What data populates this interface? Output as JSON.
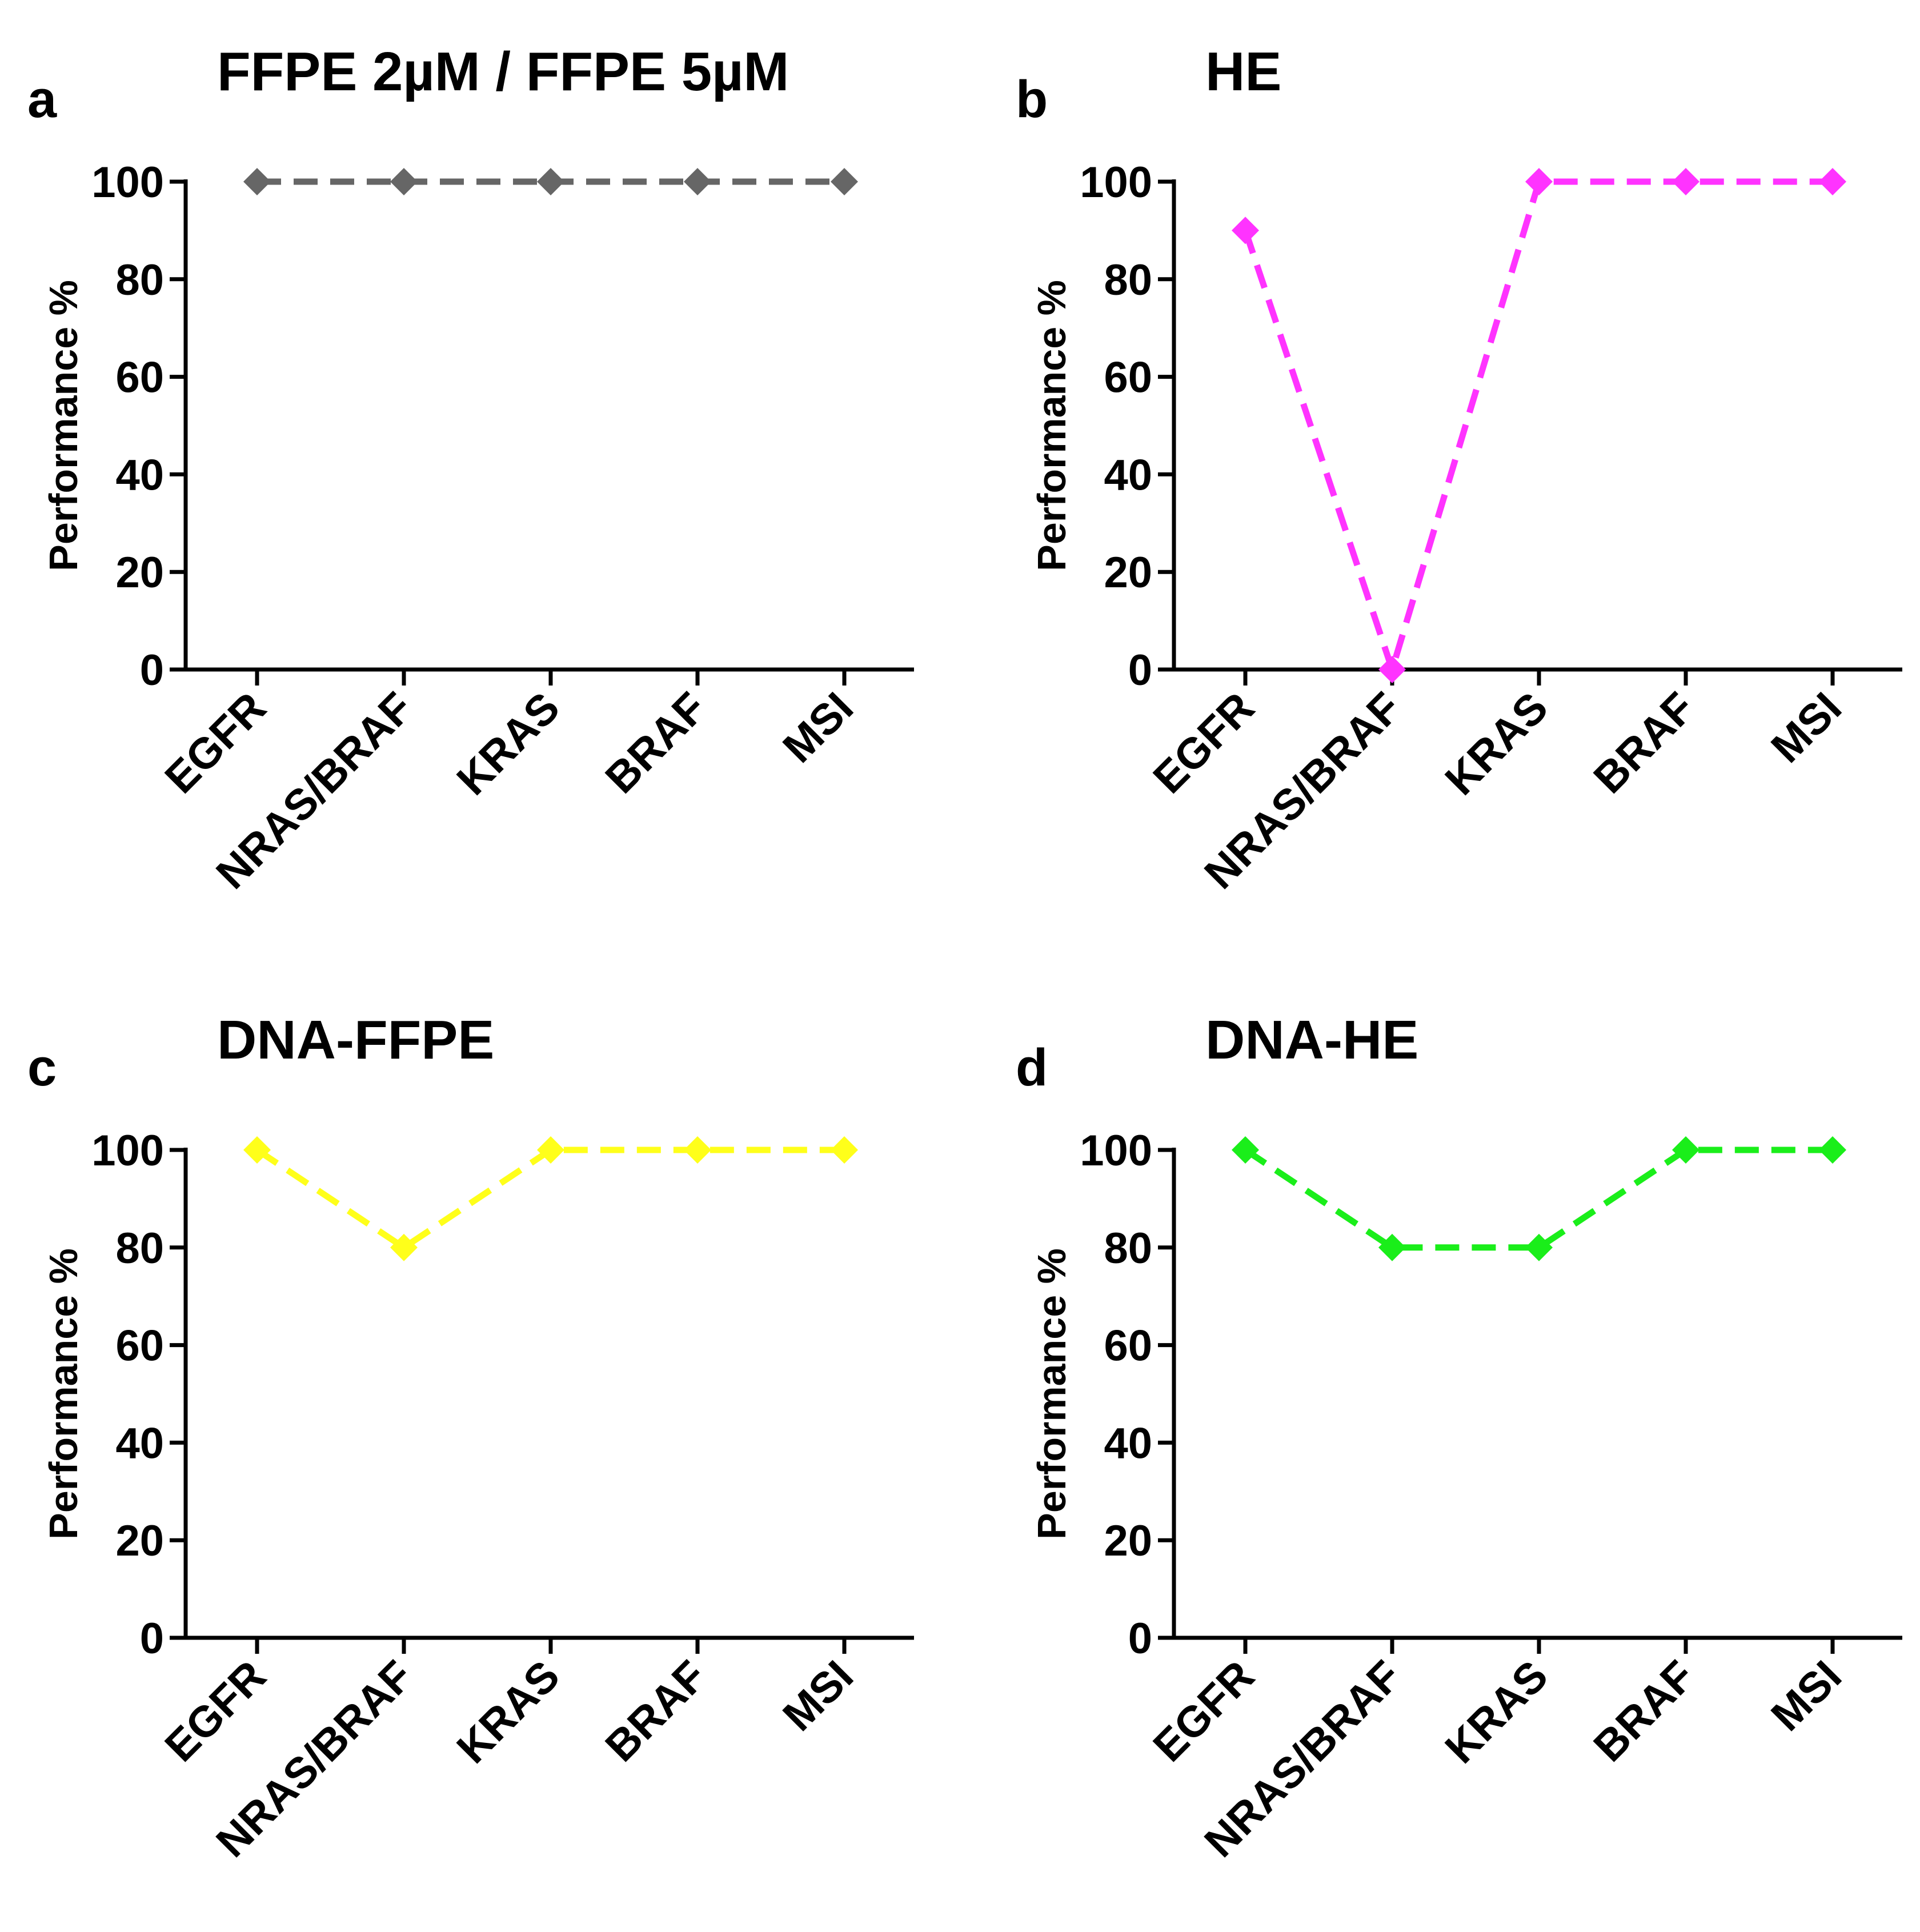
{
  "chart_data": [
    {
      "panel": "a",
      "type": "line",
      "title": "FFPE 2µM / FFPE 5µM",
      "xlabel": "",
      "ylabel": "Performance %",
      "categories": [
        "EGFR",
        "NRAS/BRAF",
        "KRAS",
        "BRAF",
        "MSI"
      ],
      "values": [
        100,
        100,
        100,
        100,
        100
      ],
      "color": "#666666",
      "marker": "diamond",
      "line_style": "dashed",
      "ylim": [
        0,
        100
      ],
      "yticks": [
        0,
        20,
        40,
        60,
        80,
        100
      ],
      "grid": false
    },
    {
      "panel": "b",
      "type": "line",
      "title": "HE",
      "xlabel": "",
      "ylabel": "Performance %",
      "categories": [
        "EGFR",
        "NRAS/BRAF",
        "KRAS",
        "BRAF",
        "MSI"
      ],
      "values": [
        90,
        0,
        100,
        100,
        100
      ],
      "color": "#ff33ff",
      "marker": "diamond",
      "line_style": "dashed",
      "ylim": [
        0,
        100
      ],
      "yticks": [
        0,
        20,
        40,
        60,
        80,
        100
      ],
      "grid": false
    },
    {
      "panel": "c",
      "type": "line",
      "title": "DNA-FFPE",
      "xlabel": "",
      "ylabel": "Performance %",
      "categories": [
        "EGFR",
        "NRAS/BRAF",
        "KRAS",
        "BRAF",
        "MSI"
      ],
      "values": [
        100,
        80,
        100,
        100,
        100
      ],
      "color": "#ffff1a",
      "marker": "diamond",
      "line_style": "dashed",
      "ylim": [
        0,
        100
      ],
      "yticks": [
        0,
        20,
        40,
        60,
        80,
        100
      ],
      "grid": false
    },
    {
      "panel": "d",
      "type": "line",
      "title": "DNA-HE",
      "xlabel": "",
      "ylabel": "Performance %",
      "categories": [
        "EGFR",
        "NRAS/BRAF",
        "KRAS",
        "BRAF",
        "MSI"
      ],
      "values": [
        100,
        80,
        80,
        100,
        100
      ],
      "color": "#1aee1a",
      "marker": "diamond",
      "line_style": "dashed",
      "ylim": [
        0,
        100
      ],
      "yticks": [
        0,
        20,
        40,
        60,
        80,
        100
      ],
      "grid": false
    }
  ]
}
